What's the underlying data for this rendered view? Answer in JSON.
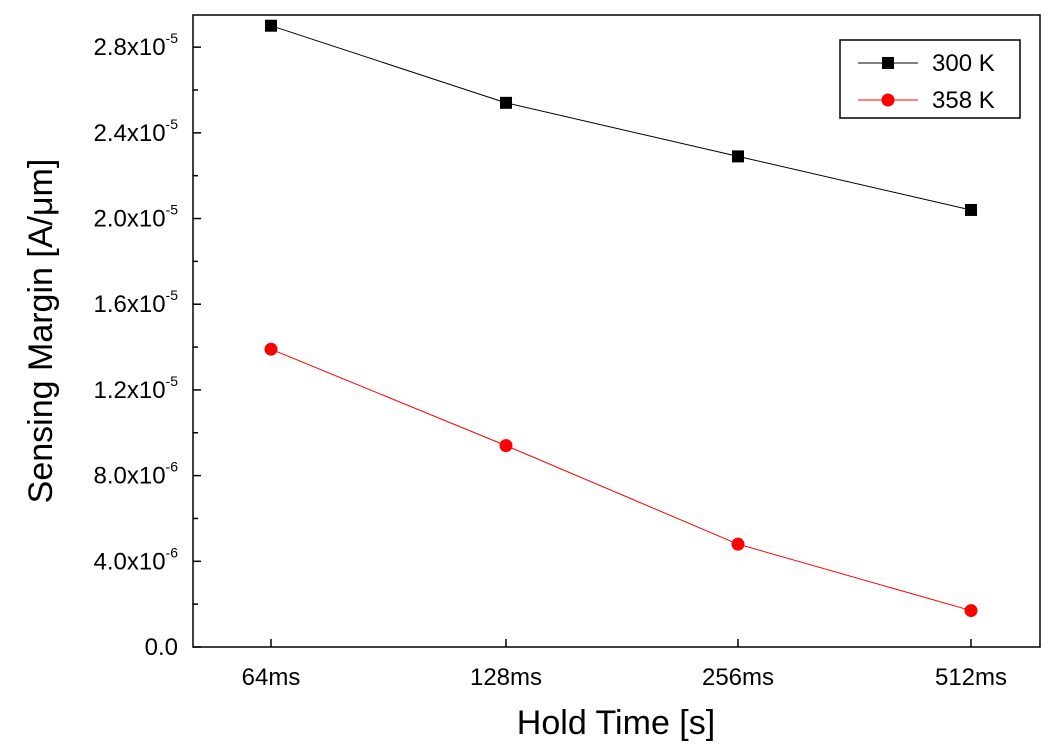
{
  "chart_data": {
    "type": "line",
    "xlabel": "Hold Time [s]",
    "ylabel": "Sensing Margin [A/μm]",
    "categories": [
      "64ms",
      "128ms",
      "256ms",
      "512ms"
    ],
    "ylim": [
      0,
      2.95e-05
    ],
    "yticks": [
      {
        "value": 0,
        "mantissa": "0.0",
        "exponent": ""
      },
      {
        "value": 4e-06,
        "mantissa": "4.0x10",
        "exponent": "-6"
      },
      {
        "value": 8e-06,
        "mantissa": "8.0x10",
        "exponent": "-6"
      },
      {
        "value": 1.2e-05,
        "mantissa": "1.2x10",
        "exponent": "-5"
      },
      {
        "value": 1.6e-05,
        "mantissa": "1.6x10",
        "exponent": "-5"
      },
      {
        "value": 2e-05,
        "mantissa": "2.0x10",
        "exponent": "-5"
      },
      {
        "value": 2.4e-05,
        "mantissa": "2.4x10",
        "exponent": "-5"
      },
      {
        "value": 2.8e-05,
        "mantissa": "2.8x10",
        "exponent": "-5"
      }
    ],
    "series": [
      {
        "name": "300 K",
        "color": "#000000",
        "marker": "square",
        "values": [
          2.9e-05,
          2.54e-05,
          2.29e-05,
          2.04e-05
        ]
      },
      {
        "name": "358 K",
        "color": "#ff0000",
        "marker": "circle",
        "values": [
          1.39e-05,
          9.4e-06,
          4.8e-06,
          1.7e-06
        ]
      }
    ],
    "legend_position": "top-right",
    "grid": false
  }
}
